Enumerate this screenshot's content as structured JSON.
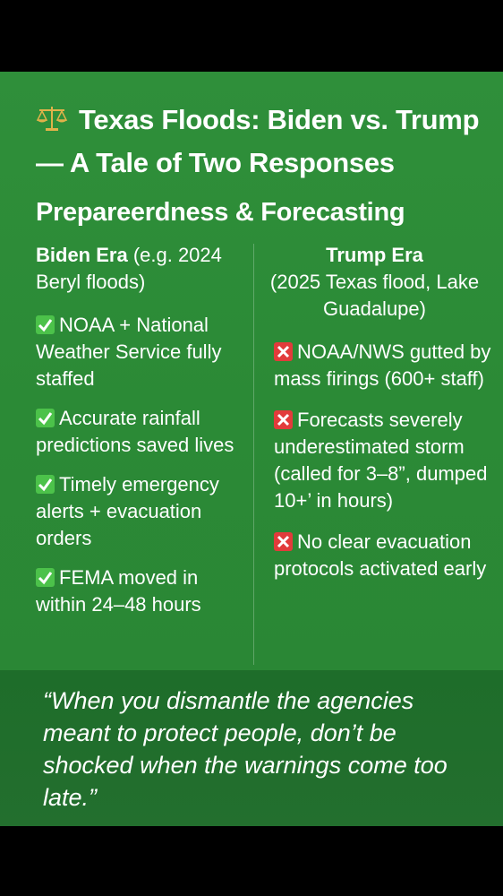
{
  "title": "Texas Floods: Biden vs. Trump — A Tale of Two Responses",
  "title_icon": "balance-scale-icon",
  "section_heading": "Prepareerdness & Forecasting",
  "colors": {
    "background": "#2b8a36",
    "quote_background": "#1f6e2b",
    "check": "#4cc24a",
    "cross": "#e23b3b"
  },
  "left": {
    "heading_bold": "Biden Era",
    "heading_rest": " (e.g. 2024 Beryl floods)",
    "items": [
      {
        "icon": "check-mark-icon",
        "text": "NOAA + National Weather Service fully staffed"
      },
      {
        "icon": "check-mark-icon",
        "text": "Accurate rainfall predictions saved lives"
      },
      {
        "icon": "check-mark-icon",
        "text": "Timely emergency alerts + evacuation orders"
      },
      {
        "icon": "check-mark-icon",
        "text": "FEMA moved in within 24–48 hours"
      }
    ]
  },
  "right": {
    "heading_bold": "Trump Era",
    "heading_rest": "(2025 Texas flood, Lake Guadalupe)",
    "items": [
      {
        "icon": "cross-mark-icon",
        "text": "NOAA/NWS gutted by mass firings (600+ staff)"
      },
      {
        "icon": "cross-mark-icon",
        "text": "Forecasts severely underestimated storm (called for 3–8”, dumped 10+’ in hours)"
      },
      {
        "icon": "cross-mark-icon",
        "text": "No clear evacuation protocols activated early"
      }
    ]
  },
  "quote": "“When you dismantle the agencies meant to protect people, don’t be shocked when the warnings come too late.”"
}
